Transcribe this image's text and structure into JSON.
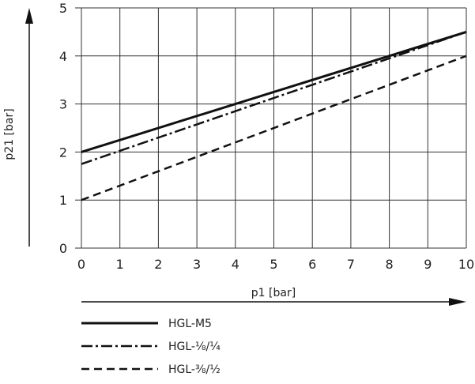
{
  "chart_data": {
    "type": "line",
    "xlabel": "p1 [bar]",
    "ylabel": "p21 [bar]",
    "xlim": [
      0,
      10
    ],
    "ylim": [
      0,
      5
    ],
    "x_ticks": [
      "0",
      "1",
      "2",
      "3",
      "4",
      "5",
      "6",
      "7",
      "8",
      "9",
      "10"
    ],
    "y_ticks": [
      "0",
      "1",
      "2",
      "3",
      "4",
      "5"
    ],
    "grid": true,
    "legend_position": "bottom-left",
    "series": [
      {
        "name": "HGL-M5",
        "style": "solid",
        "x": [
          0,
          10
        ],
        "y": [
          2.0,
          4.5
        ]
      },
      {
        "name": "HGL-1/8/1/4",
        "style": "dash-dot",
        "x": [
          0,
          10
        ],
        "y": [
          1.75,
          4.5
        ]
      },
      {
        "name": "HGL-3/8/1/2",
        "style": "dashed",
        "x": [
          0,
          10
        ],
        "y": [
          1.0,
          4.0
        ]
      }
    ],
    "legend_labels": [
      "HGL-M5",
      "HGL-⅛/¼",
      "HGL-⅜/½"
    ],
    "colors": {
      "line": "#111111",
      "grid": "#333333",
      "text": "#222222"
    }
  }
}
